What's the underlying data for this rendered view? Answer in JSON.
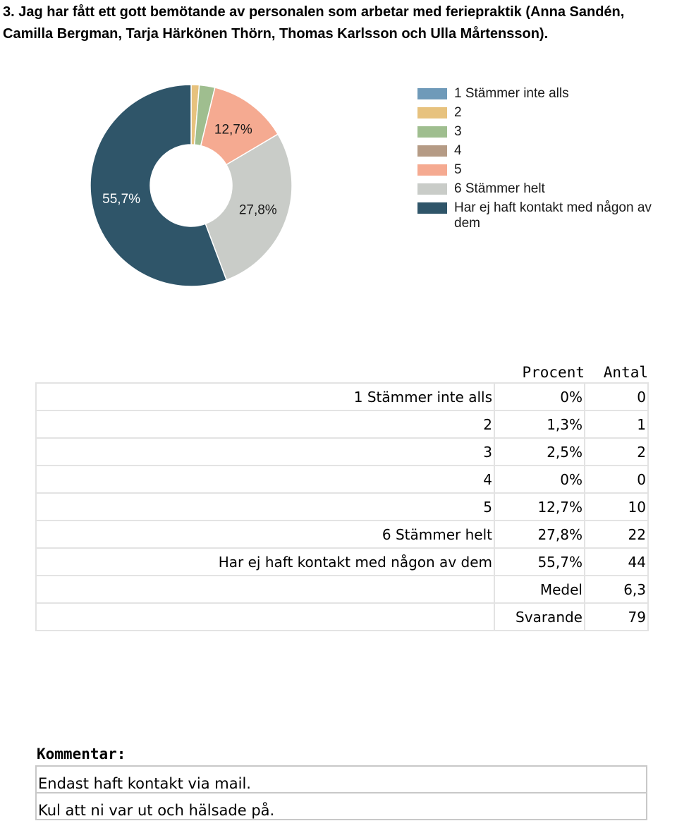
{
  "question": {
    "title": "3. Jag har fått ett gott bemötande av personalen som arbetar med feriepraktik (Anna Sandén, Camilla Bergman, Tarja Härkönen Thörn, Thomas Karlsson och Ulla Mårtensson)."
  },
  "chart_data": {
    "type": "pie",
    "variant": "donut",
    "title": "",
    "labels": [
      "1 Stämmer inte alls",
      "2",
      "3",
      "4",
      "5",
      "6 Stämmer helt",
      "Har ej haft kontakt med någon av dem"
    ],
    "values": [
      0,
      1.3,
      2.5,
      0,
      12.7,
      27.8,
      55.7
    ],
    "slice_labels": [
      "",
      "",
      "",
      "",
      "12,7%",
      "27,8%",
      "55,7%"
    ],
    "colors": [
      "#6f9ab9",
      "#e7c27e",
      "#9fbe8f",
      "#b59b85",
      "#f5aa91",
      "#c9ccc8",
      "#2f5569"
    ],
    "legend_position": "right"
  },
  "table": {
    "headers": [
      "",
      "Procent",
      "Antal"
    ],
    "rows": [
      [
        "1 Stämmer inte alls",
        "0%",
        "0"
      ],
      [
        "2",
        "1,3%",
        "1"
      ],
      [
        "3",
        "2,5%",
        "2"
      ],
      [
        "4",
        "0%",
        "0"
      ],
      [
        "5",
        "12,7%",
        "10"
      ],
      [
        "6 Stämmer helt",
        "27,8%",
        "22"
      ],
      [
        "Har ej haft kontakt med någon av dem",
        "55,7%",
        "44"
      ],
      [
        "",
        "Medel",
        "6,3"
      ],
      [
        "",
        "Svarande",
        "79"
      ]
    ]
  },
  "comments": {
    "title": "Kommentar:",
    "items": [
      "Endast haft kontakt via mail.",
      "Kul att ni var ut och hälsade på."
    ]
  }
}
